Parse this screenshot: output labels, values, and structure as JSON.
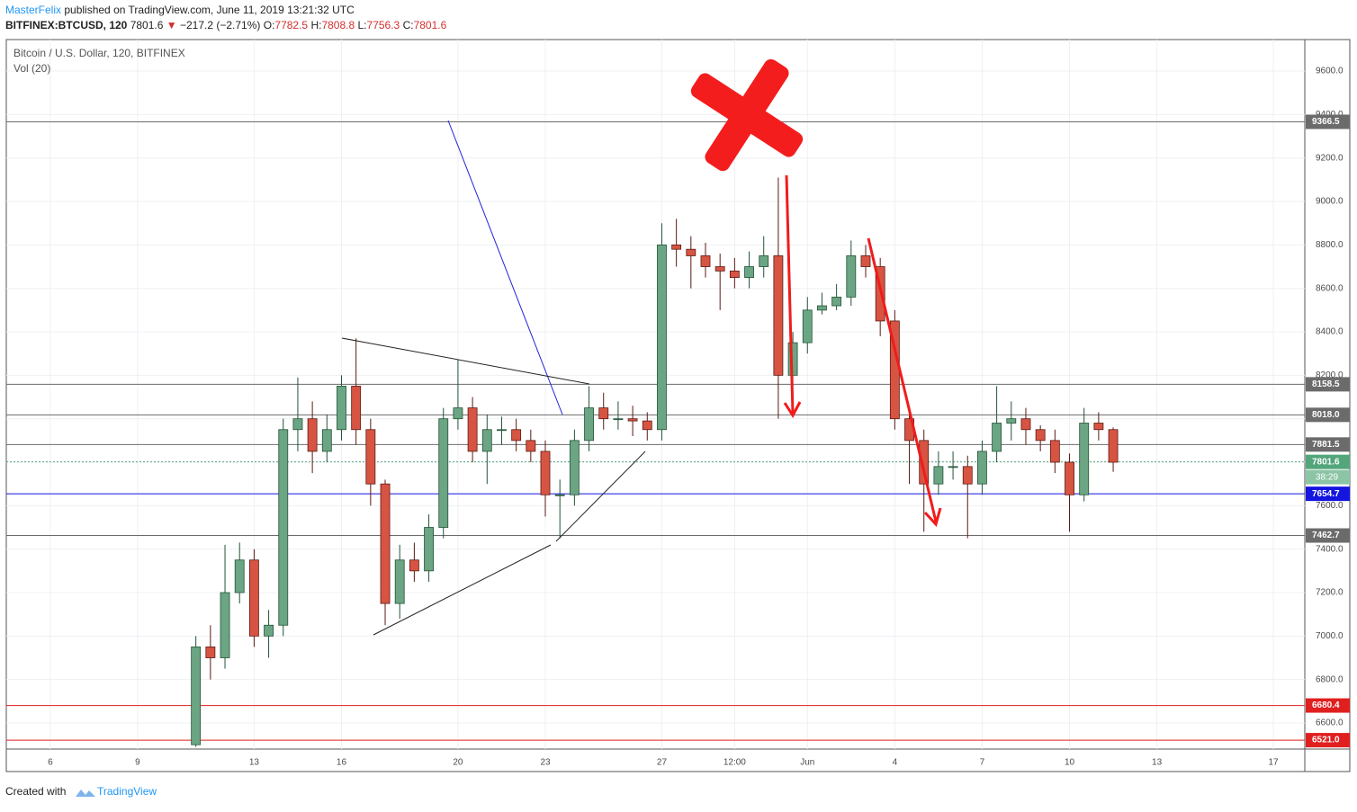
{
  "header": {
    "author": "MasterFelix",
    "published": "published on TradingView.com, June 11, 2019 13:21:32 UTC",
    "symbol": "BITFINEX:BTCUSD, 120",
    "last": "7801.6",
    "direction": "▼",
    "change": "−217.2 (−2.71%)",
    "o_label": "O:",
    "o": "7782.5",
    "h_label": "H:",
    "h": "7808.8",
    "l_label": "L:",
    "l": "7756.3",
    "c_label": "C:",
    "c": "7801.6"
  },
  "legend": {
    "series_title": "Bitcoin / U.S. Dollar, 120, BITFINEX",
    "indicator": "Vol (20)"
  },
  "footer": {
    "created": "Created with",
    "brand": "TradingView"
  },
  "chart_data": {
    "type": "candlestick",
    "xlim": [
      4.49,
      49.08
    ],
    "ylim": [
      6480,
      9745
    ],
    "xticks": [
      6,
      9,
      13,
      16,
      20,
      23,
      27,
      {
        "value": 29.5,
        "label": "12:00"
      },
      {
        "value": 32,
        "label": "Jun"
      },
      {
        "value": 35,
        "label": "4"
      },
      {
        "value": 38,
        "label": "7"
      },
      {
        "value": 41,
        "label": "10"
      },
      {
        "value": 44,
        "label": "13"
      },
      {
        "value": 48,
        "label": "17"
      }
    ],
    "yticks": [
      {
        "value": 6600,
        "label": "6600.0"
      },
      {
        "value": 6800,
        "label": "6800.0"
      },
      {
        "value": 7000,
        "label": "7000.0"
      },
      {
        "value": 7200,
        "label": "7200.0"
      },
      {
        "value": 7400,
        "label": "7400.0"
      },
      {
        "value": 7600,
        "label": "7600.0"
      },
      {
        "value": 7800,
        "label": "7800.0"
      },
      {
        "value": 8000,
        "label": "8000.0"
      },
      {
        "value": 8200,
        "label": "8200.0"
      },
      {
        "value": 8400,
        "label": "8400.0"
      },
      {
        "value": 8600,
        "label": "8600.0"
      },
      {
        "value": 8800,
        "label": "8800.0"
      },
      {
        "value": 9000,
        "label": "9000.0"
      },
      {
        "value": 9200,
        "label": "9200.0"
      },
      {
        "value": 9400,
        "label": "9400.0"
      },
      {
        "value": 9600,
        "label": "9600.0"
      }
    ],
    "grid": true,
    "up_color": "#6ba583",
    "down_color": "#d75442",
    "candles": {
      "x": [
        11,
        11.5,
        12,
        12.5,
        13,
        13.5,
        14,
        14.5,
        15,
        15.5,
        16,
        16.5,
        17,
        17.5,
        18,
        18.5,
        19,
        19.5,
        20,
        20.5,
        21,
        21.5,
        22,
        22.5,
        23,
        23.5,
        24,
        24.5,
        25,
        25.5,
        26,
        26.5,
        27,
        27.5,
        28,
        28.5,
        29,
        29.5,
        30,
        30.5,
        31,
        31.5,
        32,
        32.5,
        33,
        33.5,
        34,
        34.5,
        35,
        35.5,
        36,
        36.5,
        37,
        37.5,
        38,
        38.5,
        39,
        39.5,
        40,
        40.5,
        41,
        41.5,
        42,
        42.5
      ],
      "open": [
        6500,
        6950,
        6900,
        7200,
        7350,
        7000,
        7050,
        7950,
        8000,
        7850,
        7950,
        8150,
        7950,
        7700,
        7150,
        7350,
        7300,
        7500,
        8000,
        8050,
        7850,
        7950,
        7950,
        7900,
        7850,
        7650,
        7650,
        7900,
        8050,
        8000,
        8000,
        7990,
        7950,
        8800,
        8780,
        8750,
        8700,
        8680,
        8650,
        8700,
        8750,
        8200,
        8350,
        8500,
        8520,
        8560,
        8750,
        8700,
        8450,
        8000,
        7900,
        7700,
        7780,
        7780,
        7700,
        7850,
        7980,
        8000,
        7950,
        7900,
        7800,
        7650,
        7980,
        7950
      ],
      "high": [
        7000,
        7050,
        7420,
        7430,
        7400,
        7120,
        8000,
        8190,
        8080,
        8020,
        8200,
        8370,
        8000,
        7720,
        7420,
        7430,
        7560,
        8050,
        8270,
        8100,
        8020,
        8010,
        8000,
        7950,
        7900,
        7720,
        7950,
        8150,
        8120,
        8080,
        8060,
        8030,
        8900,
        8920,
        8840,
        8810,
        8760,
        8740,
        8770,
        8840,
        9110,
        8400,
        8560,
        8580,
        8620,
        8820,
        8800,
        8740,
        8500,
        8060,
        7950,
        7850,
        7850,
        7830,
        7900,
        8150,
        8080,
        8050,
        7970,
        7950,
        7840,
        8050,
        8030,
        7960
      ],
      "low": [
        6490,
        6800,
        6850,
        7150,
        6950,
        6900,
        7000,
        7850,
        7750,
        7800,
        7900,
        7880,
        7600,
        7050,
        7080,
        7250,
        7250,
        7450,
        7950,
        7800,
        7700,
        7880,
        7850,
        7800,
        7550,
        7450,
        7600,
        7850,
        7950,
        7950,
        7920,
        7900,
        7900,
        8700,
        8600,
        8650,
        8500,
        8600,
        8600,
        8650,
        8000,
        8150,
        8300,
        8480,
        8500,
        8520,
        8650,
        8380,
        7950,
        7700,
        7480,
        7650,
        7720,
        7450,
        7650,
        7800,
        7900,
        7880,
        7850,
        7750,
        7480,
        7620,
        7900,
        7756
      ],
      "close": [
        6950,
        6900,
        7200,
        7350,
        7000,
        7050,
        7950,
        8000,
        7850,
        7950,
        8150,
        7950,
        7700,
        7150,
        7350,
        7300,
        7500,
        8000,
        8050,
        7850,
        7950,
        7950,
        7900,
        7850,
        7650,
        7650,
        7900,
        8050,
        8000,
        8000,
        7990,
        7950,
        8800,
        8780,
        8750,
        8700,
        8680,
        8650,
        8700,
        8750,
        8200,
        8350,
        8500,
        8520,
        8560,
        8750,
        8700,
        8450,
        8000,
        7900,
        7700,
        7780,
        7780,
        7700,
        7850,
        7980,
        8000,
        7950,
        7900,
        7800,
        7650,
        7980,
        7950,
        7800
      ]
    },
    "levels": {
      "values": [
        9366.5,
        8158.5,
        8018,
        7881.5,
        7801.6,
        7654.7,
        7462.7,
        6680.4,
        6521
      ],
      "value_labels": [
        "9366.5",
        "8158.5",
        "8018.0",
        "7881.5",
        "7801.6",
        "7654.7",
        "7462.7",
        "6680.4",
        "6521.0"
      ],
      "colors": [
        "#6b6b6b",
        "#6b6b6b",
        "#6b6b6b",
        "#6b6b6b",
        "#53a57a",
        "#1515e0",
        "#6b6b6b",
        "#e01f1f",
        "#e01f1f"
      ]
    },
    "countdown": "38:29"
  }
}
